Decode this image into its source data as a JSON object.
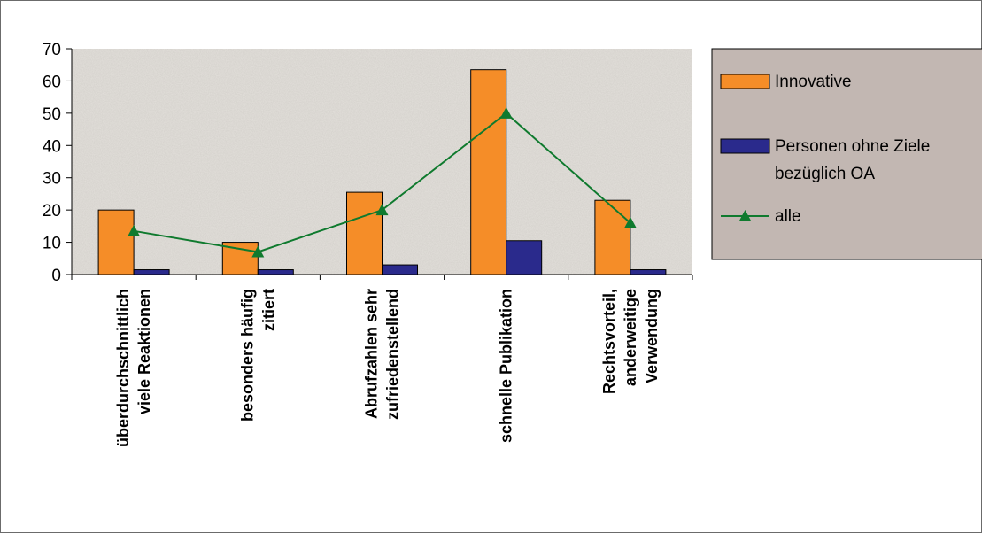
{
  "chart_data": {
    "type": "bar",
    "title": "",
    "xlabel": "",
    "ylabel": "",
    "ylim": [
      0,
      70
    ],
    "yticks": [
      0,
      10,
      20,
      30,
      40,
      50,
      60,
      70
    ],
    "grid": false,
    "categories": [
      [
        "überdurchschnittlich",
        "viele Reaktionen"
      ],
      [
        "besonders häufig",
        "zitiert"
      ],
      [
        "Abrufzahlen sehr",
        "zufriedenstellend"
      ],
      [
        "schnelle Publikation"
      ],
      [
        "Rechtsvorteil,",
        "anderweitige",
        "Verwendung"
      ]
    ],
    "series": [
      {
        "name": "Innovative",
        "kind": "bar",
        "color": "#f58d28",
        "values": [
          20,
          10,
          25.5,
          63.5,
          23
        ]
      },
      {
        "name": "Personen ohne Ziele bezüglich OA",
        "name_lines": [
          "Personen ohne Ziele",
          "bezüglich OA"
        ],
        "kind": "bar",
        "color": "#2a2a8c",
        "values": [
          1.5,
          1.5,
          3,
          10.5,
          1.5
        ]
      },
      {
        "name": "alle",
        "kind": "line",
        "color": "#0f7a2e",
        "marker": "triangle",
        "values": [
          13.5,
          7,
          20,
          50,
          16
        ]
      }
    ],
    "legend_position": "right",
    "plot_background": "#e4e1dc",
    "legend_background": "#c2b7b2"
  }
}
